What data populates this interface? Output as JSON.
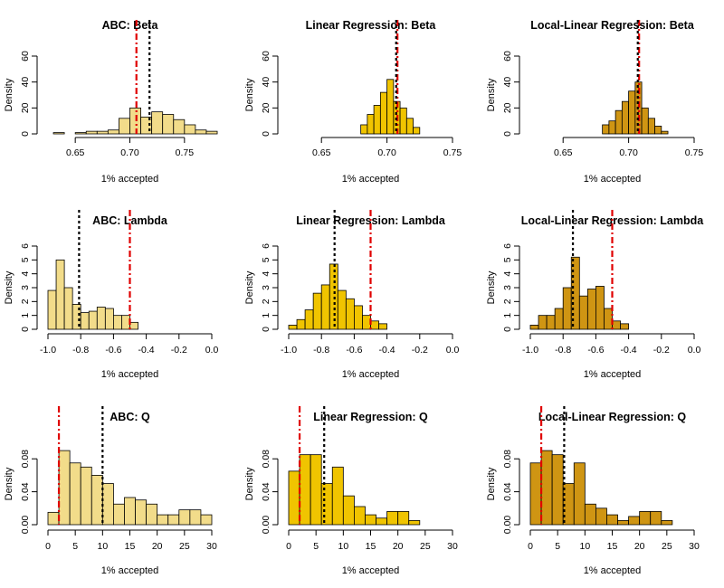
{
  "chart_data": [
    {
      "type": "bar",
      "title": "ABC: Beta",
      "xlabel": "1% accepted",
      "ylabel": "Density",
      "color": "#f2dc8a",
      "bin_start": 0.63,
      "bin_width": 0.01,
      "values": [
        1,
        0,
        1,
        2,
        2,
        3,
        12,
        20,
        13,
        17,
        15,
        11,
        7,
        3,
        2
      ],
      "xlim": [
        0.625,
        0.775
      ],
      "xticks": [
        "0.65",
        "0.70",
        "0.75"
      ],
      "xtick_values": [
        0.65,
        0.7,
        0.75
      ],
      "ylim": [
        0,
        60
      ],
      "yticks": [
        "0",
        "20",
        "40",
        "60"
      ],
      "ytick_values": [
        0,
        20,
        40,
        60
      ],
      "red_line": 0.706,
      "black_line": 0.718
    },
    {
      "type": "bar",
      "title": "Linear Regression: Beta",
      "xlabel": "1% accepted",
      "ylabel": "Density",
      "color": "#f0c400",
      "bin_start": 0.68,
      "bin_width": 0.005,
      "values": [
        7,
        15,
        22,
        32,
        42,
        25,
        20,
        12,
        5
      ],
      "xlim": [
        0.625,
        0.75
      ],
      "xticks": [
        "0.65",
        "0.70",
        "0.75"
      ],
      "xtick_values": [
        0.65,
        0.7,
        0.75
      ],
      "ylim": [
        0,
        60
      ],
      "yticks": [
        "0",
        "20",
        "40",
        "60"
      ],
      "ytick_values": [
        0,
        20,
        40,
        60
      ],
      "red_line": 0.708,
      "black_line": 0.707
    },
    {
      "type": "bar",
      "title": "Local-Linear Regression: Beta",
      "xlabel": "1% accepted",
      "ylabel": "Density",
      "color": "#cf9513",
      "bin_start": 0.68,
      "bin_width": 0.005,
      "values": [
        7,
        10,
        18,
        25,
        33,
        40,
        20,
        12,
        6,
        2
      ],
      "xlim": [
        0.625,
        0.75
      ],
      "xticks": [
        "0.65",
        "0.70",
        "0.75"
      ],
      "xtick_values": [
        0.65,
        0.7,
        0.75
      ],
      "ylim": [
        0,
        60
      ],
      "yticks": [
        "0",
        "20",
        "40",
        "60"
      ],
      "ytick_values": [
        0,
        20,
        40,
        60
      ],
      "red_line": 0.708,
      "black_line": 0.707
    },
    {
      "type": "bar",
      "title": "ABC: Lambda",
      "xlabel": "1% accepted",
      "ylabel": "Density",
      "color": "#f2dc8a",
      "bin_start": -1.0,
      "bin_width": 0.05,
      "values": [
        2.8,
        5.0,
        3.0,
        1.8,
        1.2,
        1.3,
        1.6,
        1.5,
        1.0,
        1.0,
        0.5
      ],
      "xlim": [
        -1.0,
        0.0
      ],
      "xticks": [
        "-1.0",
        "-0.8",
        "-0.6",
        "-0.4",
        "-0.2",
        "0.0"
      ],
      "xtick_values": [
        -1.0,
        -0.8,
        -0.6,
        -0.4,
        -0.2,
        0.0
      ],
      "ylim": [
        0,
        6
      ],
      "yticks": [
        "0",
        "1",
        "2",
        "3",
        "4",
        "5",
        "6"
      ],
      "ytick_values": [
        0,
        1,
        2,
        3,
        4,
        5,
        6
      ],
      "red_line": -0.5,
      "black_line": -0.81
    },
    {
      "type": "bar",
      "title": "Linear Regression: Lambda",
      "xlabel": "1% accepted",
      "ylabel": "Density",
      "color": "#f0c400",
      "bin_start": -1.0,
      "bin_width": 0.05,
      "values": [
        0.3,
        0.7,
        1.4,
        2.6,
        3.2,
        4.7,
        2.8,
        2.2,
        1.7,
        1.0,
        0.6,
        0.4
      ],
      "xlim": [
        -1.0,
        0.0
      ],
      "xticks": [
        "-1.0",
        "-0.8",
        "-0.6",
        "-0.4",
        "-0.2",
        "0.0"
      ],
      "xtick_values": [
        -1.0,
        -0.8,
        -0.6,
        -0.4,
        -0.2,
        0.0
      ],
      "ylim": [
        0,
        6
      ],
      "yticks": [
        "0",
        "1",
        "2",
        "3",
        "4",
        "5",
        "6"
      ],
      "ytick_values": [
        0,
        1,
        2,
        3,
        4,
        5,
        6
      ],
      "red_line": -0.5,
      "black_line": -0.72
    },
    {
      "type": "bar",
      "title": "Local-Linear Regression: Lambda",
      "xlabel": "1% accepted",
      "ylabel": "Density",
      "color": "#cf9513",
      "bin_start": -1.0,
      "bin_width": 0.05,
      "values": [
        0.3,
        1.0,
        1.0,
        1.5,
        3.0,
        5.2,
        2.4,
        2.9,
        3.1,
        1.5,
        0.6,
        0.4
      ],
      "xlim": [
        -1.0,
        0.0
      ],
      "xticks": [
        "-1.0",
        "-0.8",
        "-0.6",
        "-0.4",
        "-0.2",
        "0.0"
      ],
      "xtick_values": [
        -1.0,
        -0.8,
        -0.6,
        -0.4,
        -0.2,
        0.0
      ],
      "ylim": [
        0,
        6
      ],
      "yticks": [
        "0",
        "1",
        "2",
        "3",
        "4",
        "5",
        "6"
      ],
      "ytick_values": [
        0,
        1,
        2,
        3,
        4,
        5,
        6
      ],
      "red_line": -0.5,
      "black_line": -0.74
    },
    {
      "type": "bar",
      "title": "ABC: Q",
      "xlabel": "1% accepted",
      "ylabel": "Density",
      "color": "#f2dc8a",
      "bin_start": 0,
      "bin_width": 2,
      "values": [
        0.015,
        0.09,
        0.075,
        0.07,
        0.06,
        0.05,
        0.025,
        0.033,
        0.03,
        0.025,
        0.012,
        0.012,
        0.018,
        0.018,
        0.012
      ],
      "xlim": [
        0,
        30
      ],
      "xticks": [
        "0",
        "5",
        "10",
        "15",
        "20",
        "25",
        "30"
      ],
      "xtick_values": [
        0,
        5,
        10,
        15,
        20,
        25,
        30
      ],
      "ylim": [
        0,
        0.1
      ],
      "yticks": [
        "0.00",
        "0.04",
        "0.08"
      ],
      "ytick_values": [
        0,
        0.04,
        0.08
      ],
      "red_line": 2,
      "black_line": 10
    },
    {
      "type": "bar",
      "title": "Linear Regression: Q",
      "xlabel": "1% accepted",
      "ylabel": "Density",
      "color": "#f0c400",
      "bin_start": 0,
      "bin_width": 2,
      "values": [
        0.065,
        0.085,
        0.085,
        0.05,
        0.07,
        0.035,
        0.022,
        0.012,
        0.008,
        0.016,
        0.016,
        0.005
      ],
      "xlim": [
        0,
        30
      ],
      "xticks": [
        "0",
        "5",
        "10",
        "15",
        "20",
        "25",
        "30"
      ],
      "xtick_values": [
        0,
        5,
        10,
        15,
        20,
        25,
        30
      ],
      "ylim": [
        0,
        0.1
      ],
      "yticks": [
        "0.00",
        "0.04",
        "0.08"
      ],
      "ytick_values": [
        0,
        0.04,
        0.08
      ],
      "red_line": 2,
      "black_line": 6.5
    },
    {
      "type": "bar",
      "title": "Local-Linear Regression: Q",
      "xlabel": "1% accepted",
      "ylabel": "Density",
      "color": "#cf9513",
      "bin_start": 0,
      "bin_width": 2,
      "values": [
        0.075,
        0.09,
        0.085,
        0.05,
        0.075,
        0.025,
        0.02,
        0.012,
        0.005,
        0.01,
        0.016,
        0.016,
        0.005
      ],
      "xlim": [
        0,
        30
      ],
      "xticks": [
        "0",
        "5",
        "10",
        "15",
        "20",
        "25",
        "30"
      ],
      "xtick_values": [
        0,
        5,
        10,
        15,
        20,
        25,
        30
      ],
      "ylim": [
        0,
        0.1
      ],
      "yticks": [
        "0.00",
        "0.04",
        "0.08"
      ],
      "ytick_values": [
        0,
        0.04,
        0.08
      ],
      "red_line": 2,
      "black_line": 6.2
    }
  ]
}
